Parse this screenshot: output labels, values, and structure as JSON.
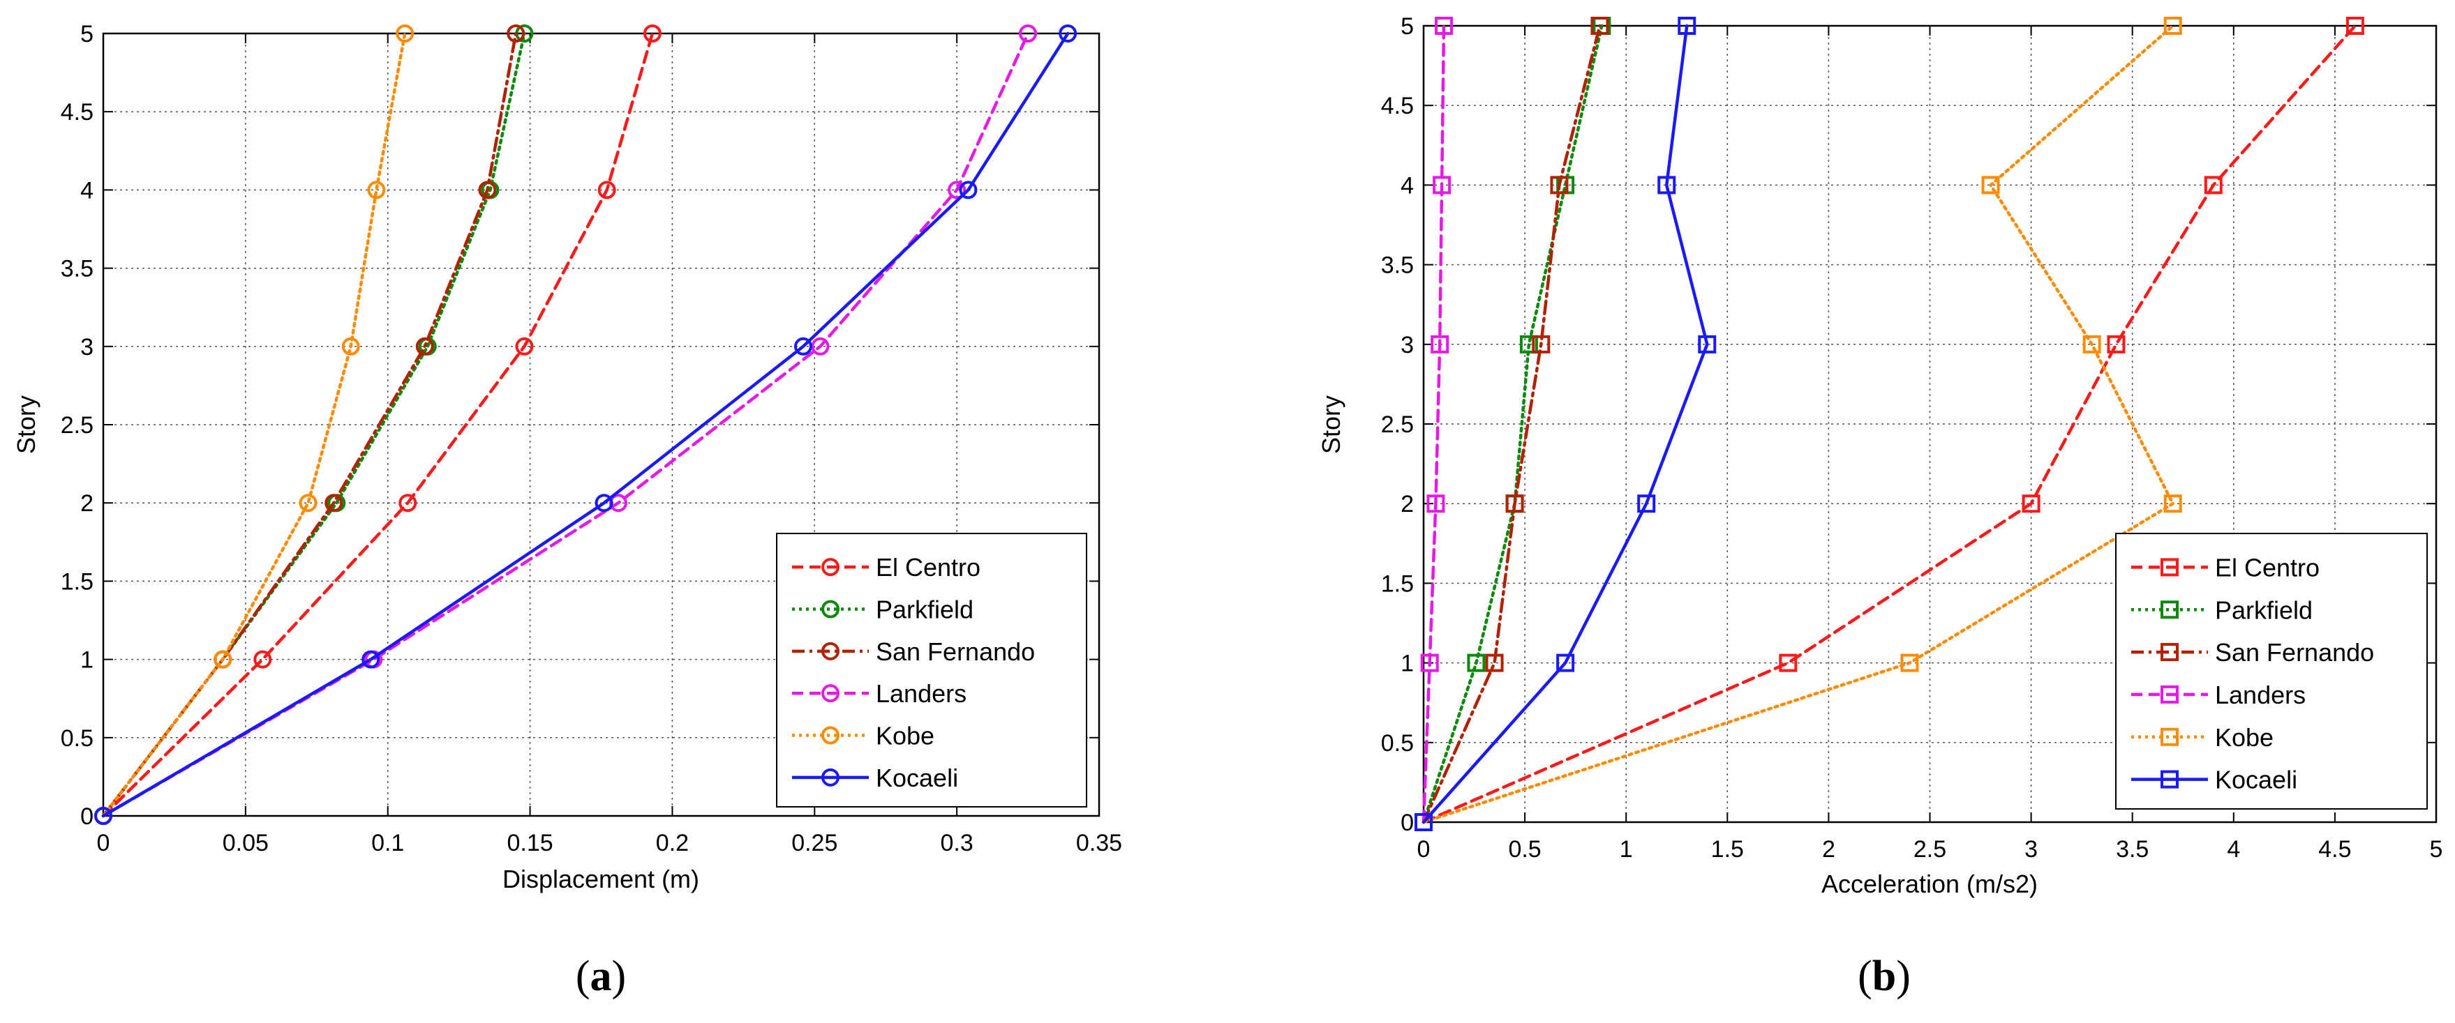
{
  "chart_data": [
    {
      "type": "line",
      "panel_label": {
        "open": "(",
        "letter": "a",
        "close": ")"
      },
      "xlabel": "Displacement (m)",
      "ylabel": "Story",
      "xlim": [
        0,
        0.35
      ],
      "ylim": [
        0,
        5
      ],
      "xticks": [
        0,
        0.05,
        0.1,
        0.15,
        0.2,
        0.25,
        0.3,
        0.35
      ],
      "xtick_labels": [
        "0",
        "0.05",
        "0.1",
        "0.15",
        "0.2",
        "0.25",
        "0.3",
        "0.35"
      ],
      "yticks": [
        0,
        0.5,
        1,
        1.5,
        2,
        2.5,
        3,
        3.5,
        4,
        4.5,
        5
      ],
      "ytick_labels": [
        "0",
        "0.5",
        "1",
        "1.5",
        "2",
        "2.5",
        "3",
        "3.5",
        "4",
        "4.5",
        "5"
      ],
      "grid": true,
      "legend_position": "bottom-right",
      "marker": "circle",
      "series": [
        {
          "name": "El Centro",
          "color": "#ff1a1a",
          "dash": "dashed",
          "x": [
            0,
            0.056,
            0.107,
            0.148,
            0.177,
            0.193
          ],
          "y": [
            0,
            1,
            2,
            3,
            4,
            5
          ]
        },
        {
          "name": "Parkfield",
          "color": "#0a8a0a",
          "dash": "dotted",
          "x": [
            0,
            0.042,
            0.082,
            0.114,
            0.136,
            0.148
          ],
          "y": [
            0,
            1,
            2,
            3,
            4,
            5
          ]
        },
        {
          "name": "San Fernando",
          "color": "#b22200",
          "dash": "dashdot",
          "x": [
            0,
            0.042,
            0.081,
            0.113,
            0.135,
            0.145
          ],
          "y": [
            0,
            1,
            2,
            3,
            4,
            5
          ]
        },
        {
          "name": "Landers",
          "color": "#e619e6",
          "dash": "dashed",
          "x": [
            0,
            0.095,
            0.181,
            0.252,
            0.3,
            0.325
          ],
          "y": [
            0,
            1,
            2,
            3,
            4,
            5
          ]
        },
        {
          "name": "Kobe",
          "color": "#ff8c00",
          "dash": "dotted",
          "x": [
            0,
            0.042,
            0.072,
            0.087,
            0.096,
            0.106
          ],
          "y": [
            0,
            1,
            2,
            3,
            4,
            5
          ]
        },
        {
          "name": "Kocaeli",
          "color": "#1a1aff",
          "dash": "solid",
          "x": [
            0,
            0.094,
            0.176,
            0.246,
            0.304,
            0.339
          ],
          "y": [
            0,
            1,
            2,
            3,
            4,
            5
          ]
        }
      ]
    },
    {
      "type": "line",
      "panel_label": {
        "open": "(",
        "letter": "b",
        "close": ")"
      },
      "xlabel": "Acceleration (m/s2)",
      "ylabel": "Story",
      "xlim": [
        0,
        5
      ],
      "ylim": [
        0,
        5
      ],
      "xticks": [
        0,
        0.5,
        1,
        1.5,
        2,
        2.5,
        3,
        3.5,
        4,
        4.5,
        5
      ],
      "xtick_labels": [
        "0",
        "0.5",
        "1",
        "1.5",
        "2",
        "2.5",
        "3",
        "3.5",
        "4",
        "4.5",
        "5"
      ],
      "yticks": [
        0,
        0.5,
        1,
        1.5,
        2,
        2.5,
        3,
        3.5,
        4,
        4.5,
        5
      ],
      "ytick_labels": [
        "0",
        "0.5",
        "1",
        "1.5",
        "2",
        "2.5",
        "3",
        "3.5",
        "4",
        "4.5",
        "5"
      ],
      "grid": true,
      "legend_position": "bottom-right",
      "marker": "square",
      "series": [
        {
          "name": "El Centro",
          "color": "#ff1a1a",
          "dash": "dashed",
          "x": [
            0,
            1.8,
            3.0,
            3.42,
            3.9,
            4.6
          ],
          "y": [
            0,
            1,
            2,
            3,
            4,
            5
          ]
        },
        {
          "name": "Parkfield",
          "color": "#0a8a0a",
          "dash": "dotted",
          "x": [
            0,
            0.26,
            0.45,
            0.52,
            0.7,
            0.88
          ],
          "y": [
            0,
            1,
            2,
            3,
            4,
            5
          ]
        },
        {
          "name": "San Fernando",
          "color": "#b22200",
          "dash": "dashdot",
          "x": [
            0,
            0.35,
            0.45,
            0.58,
            0.67,
            0.87
          ],
          "y": [
            0,
            1,
            2,
            3,
            4,
            5
          ]
        },
        {
          "name": "Landers",
          "color": "#e619e6",
          "dash": "dashed",
          "x": [
            0,
            0.03,
            0.06,
            0.08,
            0.09,
            0.1
          ],
          "y": [
            0,
            1,
            2,
            3,
            4,
            5
          ]
        },
        {
          "name": "Kobe",
          "color": "#ff8c00",
          "dash": "dotted",
          "x": [
            0,
            2.4,
            3.7,
            3.3,
            2.8,
            3.7
          ],
          "y": [
            0,
            1,
            2,
            3,
            4,
            5
          ]
        },
        {
          "name": "Kocaeli",
          "color": "#1a1aff",
          "dash": "solid",
          "x": [
            0,
            0.7,
            1.1,
            1.4,
            1.2,
            1.3
          ],
          "y": [
            0,
            1,
            2,
            3,
            4,
            5
          ]
        }
      ]
    }
  ]
}
